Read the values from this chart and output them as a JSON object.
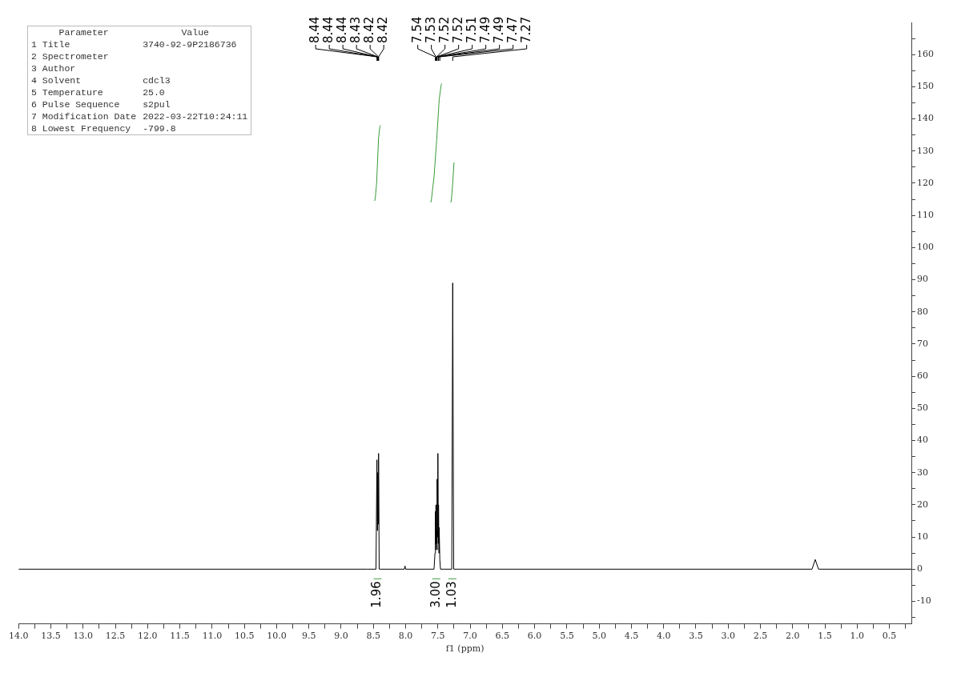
{
  "chart_data": [
    {
      "type": "other",
      "annotations": [
        "Parameter\tValue",
        "1 Title\t3740-92-9P2186736",
        "2 Spectrometer",
        "3 Author",
        "4 Solvent\tcdcl3",
        "5 Temperature\t25.0",
        "6 Pulse Sequence\ts2pul",
        "7 Modification Date\t2022-03-22T10:24:11",
        "8 Lowest Frequency\t-799.8"
      ]
    },
    {
      "type": "line",
      "xlabel": "f1 (ppm)",
      "xlim": [
        14.0,
        0.16
      ],
      "ylim": [
        -17,
        170
      ],
      "xticks": [
        {
          "value": 14,
          "label": "14.0"
        },
        {
          "value": 13.5,
          "label": "13.5"
        },
        {
          "value": 13,
          "label": "13.0"
        },
        {
          "value": 12.5,
          "label": "12.5"
        },
        {
          "value": 12,
          "label": "12.0"
        },
        {
          "value": 11.5,
          "label": "11.5"
        },
        {
          "value": 11,
          "label": "11.0"
        },
        {
          "value": 10.5,
          "label": "10.5"
        },
        {
          "value": 10,
          "label": "10.0"
        },
        {
          "value": 9.5,
          "label": "9.5"
        },
        {
          "value": 9,
          "label": "9.0"
        },
        {
          "value": 8.5,
          "label": "8.5"
        },
        {
          "value": 8,
          "label": "8.0"
        },
        {
          "value": 7.5,
          "label": "7.5"
        },
        {
          "value": 7,
          "label": "7.0"
        },
        {
          "value": 6.5,
          "label": "6.5"
        },
        {
          "value": 6,
          "label": "6.0"
        },
        {
          "value": 5.5,
          "label": "5.5"
        },
        {
          "value": 5,
          "label": "5.0"
        },
        {
          "value": 4.5,
          "label": "4.5"
        },
        {
          "value": 4,
          "label": "4.0"
        },
        {
          "value": 3.5,
          "label": "3.5"
        },
        {
          "value": 3,
          "label": "3.0"
        },
        {
          "value": 2.5,
          "label": "2.5"
        },
        {
          "value": 2,
          "label": "2.0"
        },
        {
          "value": 1.5,
          "label": "1.5"
        },
        {
          "value": 1,
          "label": "1.0"
        },
        {
          "value": 0.5,
          "label": "0.5"
        },
        {
          "value": 13.75,
          "label": null
        },
        {
          "value": 13.25,
          "label": null
        },
        {
          "value": 12.75,
          "label": null
        },
        {
          "value": 12.25,
          "label": null
        },
        {
          "value": 11.75,
          "label": null
        },
        {
          "value": 11.25,
          "label": null
        },
        {
          "value": 10.75,
          "label": null
        },
        {
          "value": 10.25,
          "label": null
        },
        {
          "value": 9.75,
          "label": null
        },
        {
          "value": 9.25,
          "label": null
        },
        {
          "value": 8.75,
          "label": null
        },
        {
          "value": 8.25,
          "label": null
        },
        {
          "value": 7.75,
          "label": null
        },
        {
          "value": 7.25,
          "label": null
        },
        {
          "value": 6.75,
          "label": null
        },
        {
          "value": 6.25,
          "label": null
        },
        {
          "value": 5.75,
          "label": null
        },
        {
          "value": 5.25,
          "label": null
        },
        {
          "value": 4.75,
          "label": null
        },
        {
          "value": 4.25,
          "label": null
        },
        {
          "value": 3.75,
          "label": null
        },
        {
          "value": 3.25,
          "label": null
        },
        {
          "value": 2.75,
          "label": null
        },
        {
          "value": 2.25,
          "label": null
        },
        {
          "value": 1.75,
          "label": null
        },
        {
          "value": 1.25,
          "label": null
        },
        {
          "value": 0.75,
          "label": null
        },
        {
          "value": 0.25,
          "label": null
        }
      ],
      "yticks": [
        -10,
        0,
        10,
        20,
        30,
        40,
        50,
        60,
        70,
        80,
        90,
        100,
        110,
        120,
        130,
        140,
        150,
        160,
        {
          "value": -15,
          "label": null
        },
        {
          "value": -5,
          "label": null
        },
        {
          "value": 5,
          "label": null
        },
        {
          "value": 15,
          "label": null
        },
        {
          "value": 25,
          "label": null
        },
        {
          "value": 35,
          "label": null
        },
        {
          "value": 45,
          "label": null
        },
        {
          "value": 55,
          "label": null
        },
        {
          "value": 65,
          "label": null
        },
        {
          "value": 75,
          "label": null
        },
        {
          "value": 85,
          "label": null
        },
        {
          "value": 95,
          "label": null
        },
        {
          "value": 105,
          "label": null
        },
        {
          "value": 115,
          "label": null
        },
        {
          "value": 125,
          "label": null
        },
        {
          "value": 135,
          "label": null
        },
        {
          "value": 145,
          "label": null
        },
        {
          "value": 155,
          "label": null
        },
        {
          "value": 165,
          "label": null
        }
      ],
      "grid": false,
      "legend": false,
      "marker": "none",
      "line_style": "solid",
      "series": [
        {
          "color": "#000000",
          "x": [
            14.0,
            8.6,
            8.46,
            8.445,
            8.44,
            8.435,
            8.425,
            8.42,
            8.41,
            8.4,
            8.02,
            8.01,
            8.0,
            7.62,
            7.56,
            7.545,
            7.54,
            7.535,
            7.53,
            7.525,
            7.52,
            7.515,
            7.51,
            7.505,
            7.5,
            7.495,
            7.49,
            7.485,
            7.48,
            7.47,
            7.46,
            7.4,
            7.285,
            7.27,
            7.255,
            7.2,
            1.7,
            1.65,
            1.6,
            0.16
          ],
          "values": [
            0,
            0,
            0,
            34,
            12,
            30,
            14,
            36,
            0,
            0,
            0,
            1,
            0,
            0,
            0,
            5,
            18,
            6,
            20,
            8,
            12,
            6,
            28,
            10,
            36,
            8,
            20,
            5,
            13,
            3,
            0,
            0,
            0,
            89,
            0,
            0,
            0,
            3,
            0,
            0
          ]
        },
        {
          "color": "#3c9a3c",
          "x": [
            8.48,
            8.47,
            8.45,
            8.42,
            8.4,
            8.39
          ],
          "values": [
            114.5,
            115.5,
            120,
            134,
            137.5,
            138
          ]
        },
        {
          "color": "#3c9a3c",
          "x": [
            7.61,
            7.6,
            7.56,
            7.52,
            7.48,
            7.45,
            7.44
          ],
          "values": [
            114,
            115,
            122,
            133,
            146,
            150.5,
            151
          ]
        },
        {
          "color": "#3c9a3c",
          "x": [
            7.3,
            7.29,
            7.27,
            7.25
          ],
          "values": [
            114,
            115,
            120,
            126.5
          ]
        }
      ],
      "annotations": [
        {
          "text": "8.44",
          "x": 8.44
        },
        {
          "text": "8.44",
          "x": 8.44
        },
        {
          "text": "8.44",
          "x": 8.44
        },
        {
          "text": "8.43",
          "x": 8.43
        },
        {
          "text": "8.42",
          "x": 8.42
        },
        {
          "text": "8.42",
          "x": 8.42
        },
        {
          "text": "7.54",
          "x": 7.54
        },
        {
          "text": "7.53",
          "x": 7.53
        },
        {
          "text": "7.52",
          "x": 7.52
        },
        {
          "text": "7.52",
          "x": 7.52
        },
        {
          "text": "7.51",
          "x": 7.51
        },
        {
          "text": "7.49",
          "x": 7.49
        },
        {
          "text": "7.49",
          "x": 7.49
        },
        {
          "text": "7.47",
          "x": 7.47
        },
        {
          "text": "7.27",
          "x": 7.27
        },
        "1.96",
        "3.00",
        "1.03"
      ]
    }
  ]
}
